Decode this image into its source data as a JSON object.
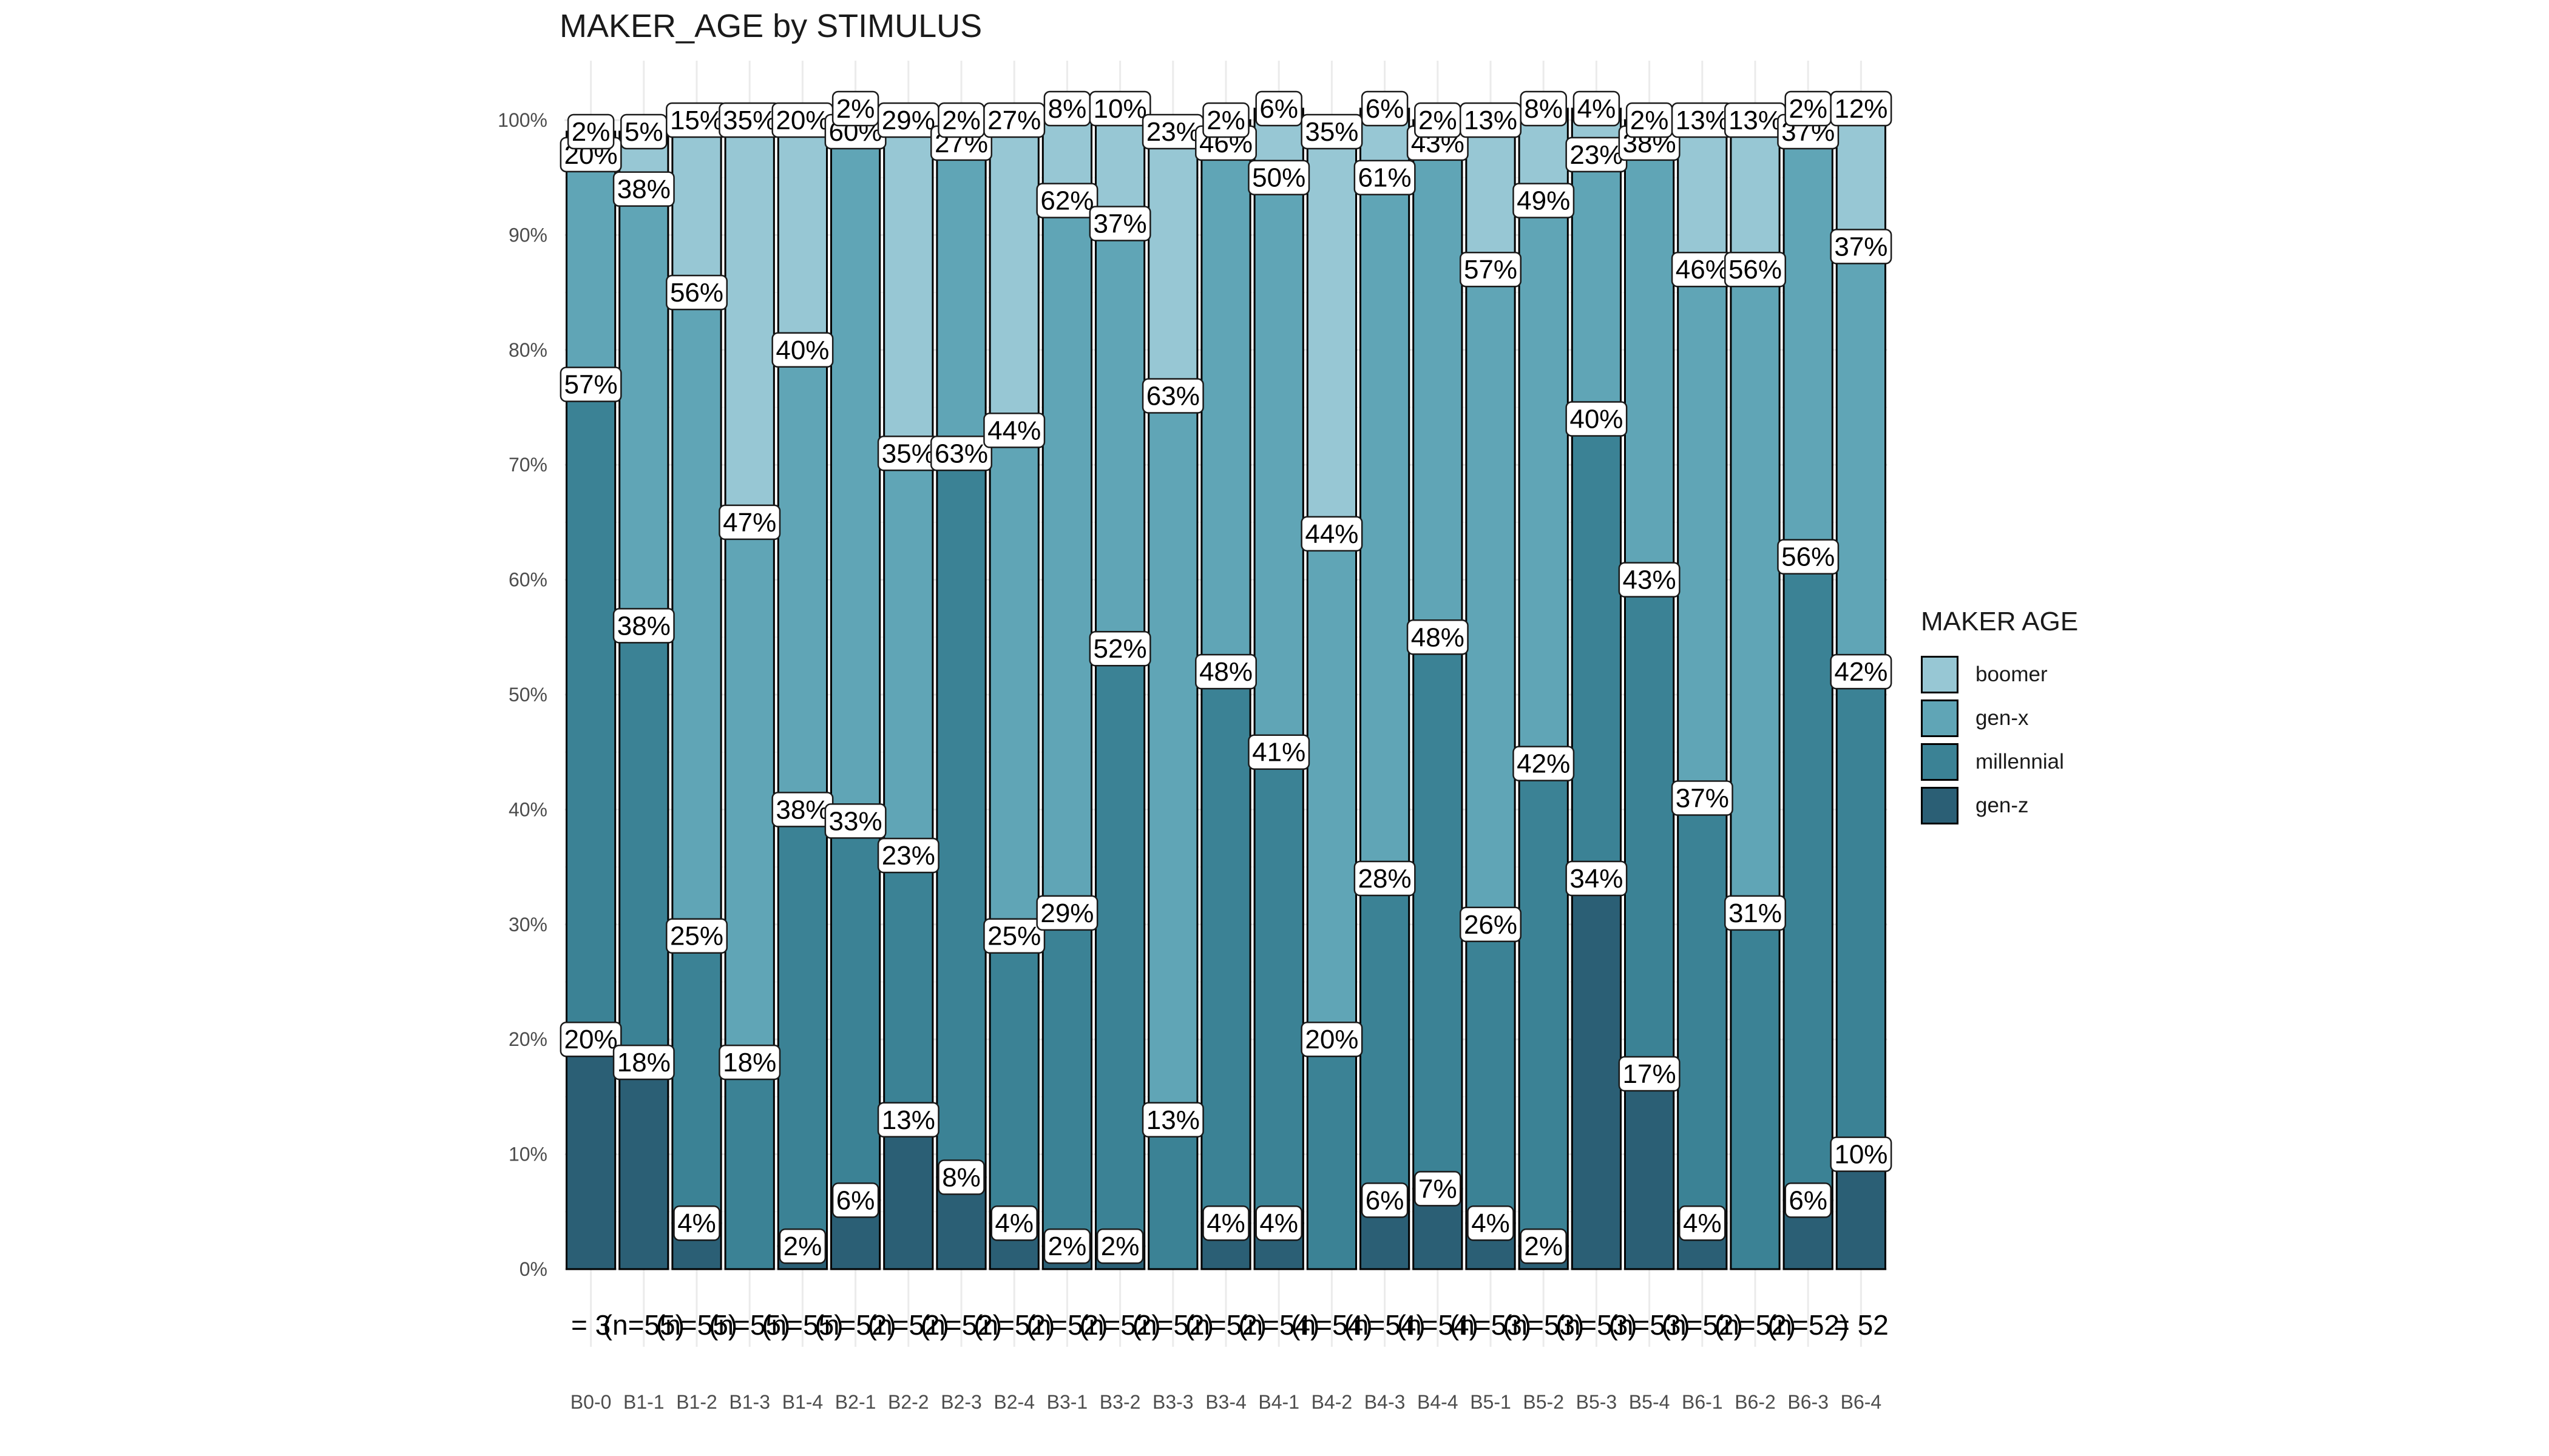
{
  "chart_data": {
    "type": "bar",
    "title": "MAKER_AGE by STIMULUS",
    "xlabel": "",
    "ylabel": "",
    "ylim": [
      0,
      1
    ],
    "y_ticks": [
      "0%",
      "10%",
      "20%",
      "30%",
      "40%",
      "50%",
      "60%",
      "70%",
      "80%",
      "90%",
      "100%"
    ],
    "categories": [
      "B0-0",
      "B1-1",
      "B1-2",
      "B1-3",
      "B1-4",
      "B2-1",
      "B2-2",
      "B2-3",
      "B2-4",
      "B3-1",
      "B3-2",
      "B3-3",
      "B3-4",
      "B4-1",
      "B4-2",
      "B4-3",
      "B4-4",
      "B5-1",
      "B5-2",
      "B5-3",
      "B5-4",
      "B6-1",
      "B6-2",
      "B6-3",
      "B6-4"
    ],
    "count_labels": [
      "= 3",
      "(n=55)",
      "(n=55)",
      "(n=55)",
      "(n=55)",
      "(n=52)",
      "(n=52)",
      "(n=52)",
      "(n=52)",
      "(n=52)",
      "(n=52)",
      "(n=52)",
      "(n=52)",
      "(n=54)",
      "(n=54)",
      "(n=54)",
      "(n=54)",
      "(n=53)",
      "(n=53)",
      "(n=53)",
      "(n=53)",
      "(n=52)",
      "(n=52)",
      "(n=52)",
      "= 52"
    ],
    "legend_title": "MAKER AGE",
    "series": [
      {
        "name": "gen-z",
        "color": "#2b5f75",
        "values": [
          0.2,
          0.18,
          0.04,
          0.0,
          0.02,
          0.06,
          0.13,
          0.08,
          0.04,
          0.02,
          0.02,
          0.0,
          0.04,
          0.04,
          0.0,
          0.06,
          0.07,
          0.04,
          0.02,
          0.34,
          0.17,
          0.04,
          0.0,
          0.06,
          0.1
        ],
        "labels": [
          "20%",
          "18%",
          "4%",
          "",
          "2%",
          "6%",
          "13%",
          "8%",
          "4%",
          "2%",
          "2%",
          "",
          "4%",
          "4%",
          "",
          "6%",
          "7%",
          "4%",
          "2%",
          "34%",
          "17%",
          "4%",
          "",
          "6%",
          "10%"
        ]
      },
      {
        "name": "millennial",
        "color": "#3b8295",
        "values": [
          0.57,
          0.38,
          0.25,
          0.18,
          0.38,
          0.33,
          0.23,
          0.63,
          0.25,
          0.29,
          0.52,
          0.13,
          0.48,
          0.41,
          0.2,
          0.28,
          0.48,
          0.26,
          0.42,
          0.4,
          0.43,
          0.37,
          0.31,
          0.56,
          0.42
        ],
        "labels": [
          "57%",
          "38%",
          "25%",
          "18%",
          "38%",
          "33%",
          "23%",
          "63%",
          "25%",
          "29%",
          "52%",
          "13%",
          "48%",
          "41%",
          "20%",
          "28%",
          "48%",
          "26%",
          "42%",
          "40%",
          "43%",
          "37%",
          "31%",
          "56%",
          "42%"
        ]
      },
      {
        "name": "gen-x",
        "color": "#60a5b6",
        "values": [
          0.2,
          0.38,
          0.56,
          0.47,
          0.4,
          0.6,
          0.35,
          0.27,
          0.44,
          0.62,
          0.37,
          0.63,
          0.46,
          0.5,
          0.44,
          0.61,
          0.43,
          0.57,
          0.49,
          0.23,
          0.38,
          0.46,
          0.56,
          0.37,
          0.37
        ],
        "labels": [
          "20%",
          "38%",
          "56%",
          "47%",
          "40%",
          "60%",
          "35%",
          "27%",
          "44%",
          "62%",
          "37%",
          "63%",
          "46%",
          "50%",
          "44%",
          "61%",
          "43%",
          "57%",
          "49%",
          "23%",
          "38%",
          "46%",
          "56%",
          "37%",
          "37%"
        ]
      },
      {
        "name": "boomer",
        "color": "#97c7d4",
        "values": [
          0.02,
          0.05,
          0.15,
          0.35,
          0.2,
          0.02,
          0.29,
          0.02,
          0.27,
          0.08,
          0.1,
          0.23,
          0.02,
          0.06,
          0.35,
          0.06,
          0.02,
          0.13,
          0.08,
          0.04,
          0.02,
          0.13,
          0.13,
          0.02,
          0.12
        ],
        "labels": [
          "2%",
          "5%",
          "15%",
          "35%",
          "20%",
          "2%",
          "29%",
          "2%",
          "27%",
          "8%",
          "10%",
          "23%",
          "2%",
          "6%",
          "35%",
          "6%",
          "2%",
          "13%",
          "8%",
          "4%",
          "2%",
          "13%",
          "13%",
          "2%",
          "12%"
        ]
      }
    ],
    "legend_order": [
      "boomer",
      "gen-x",
      "millennial",
      "gen-z"
    ],
    "legend_position": "right",
    "grid": true
  }
}
